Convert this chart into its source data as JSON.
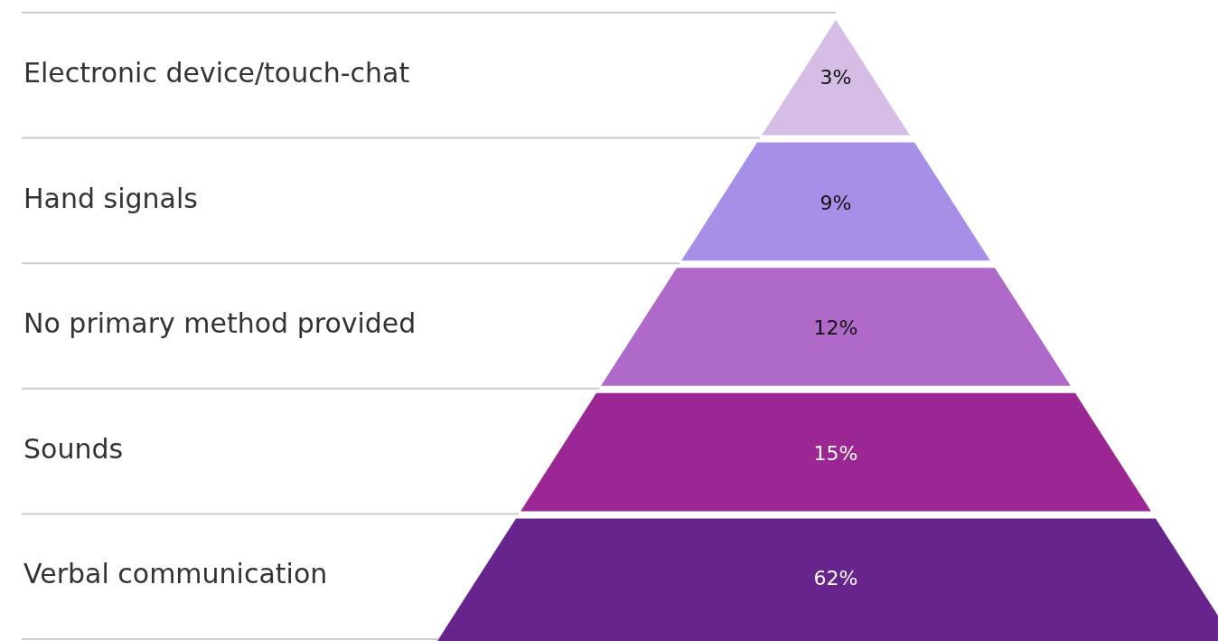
{
  "chart_data": {
    "type": "other",
    "categories": [
      "Electronic device/touch-chat",
      "Hand signals",
      "No primary method provided",
      "Sounds",
      "Verbal communication"
    ],
    "values": [
      3,
      9,
      12,
      15,
      62
    ],
    "value_labels": [
      "3%",
      "9%",
      "12%",
      "15%",
      "62%"
    ],
    "colors": [
      "#d5bde6",
      "#a78fe8",
      "#ae69c9",
      "#9b2795",
      "#66248c"
    ]
  }
}
